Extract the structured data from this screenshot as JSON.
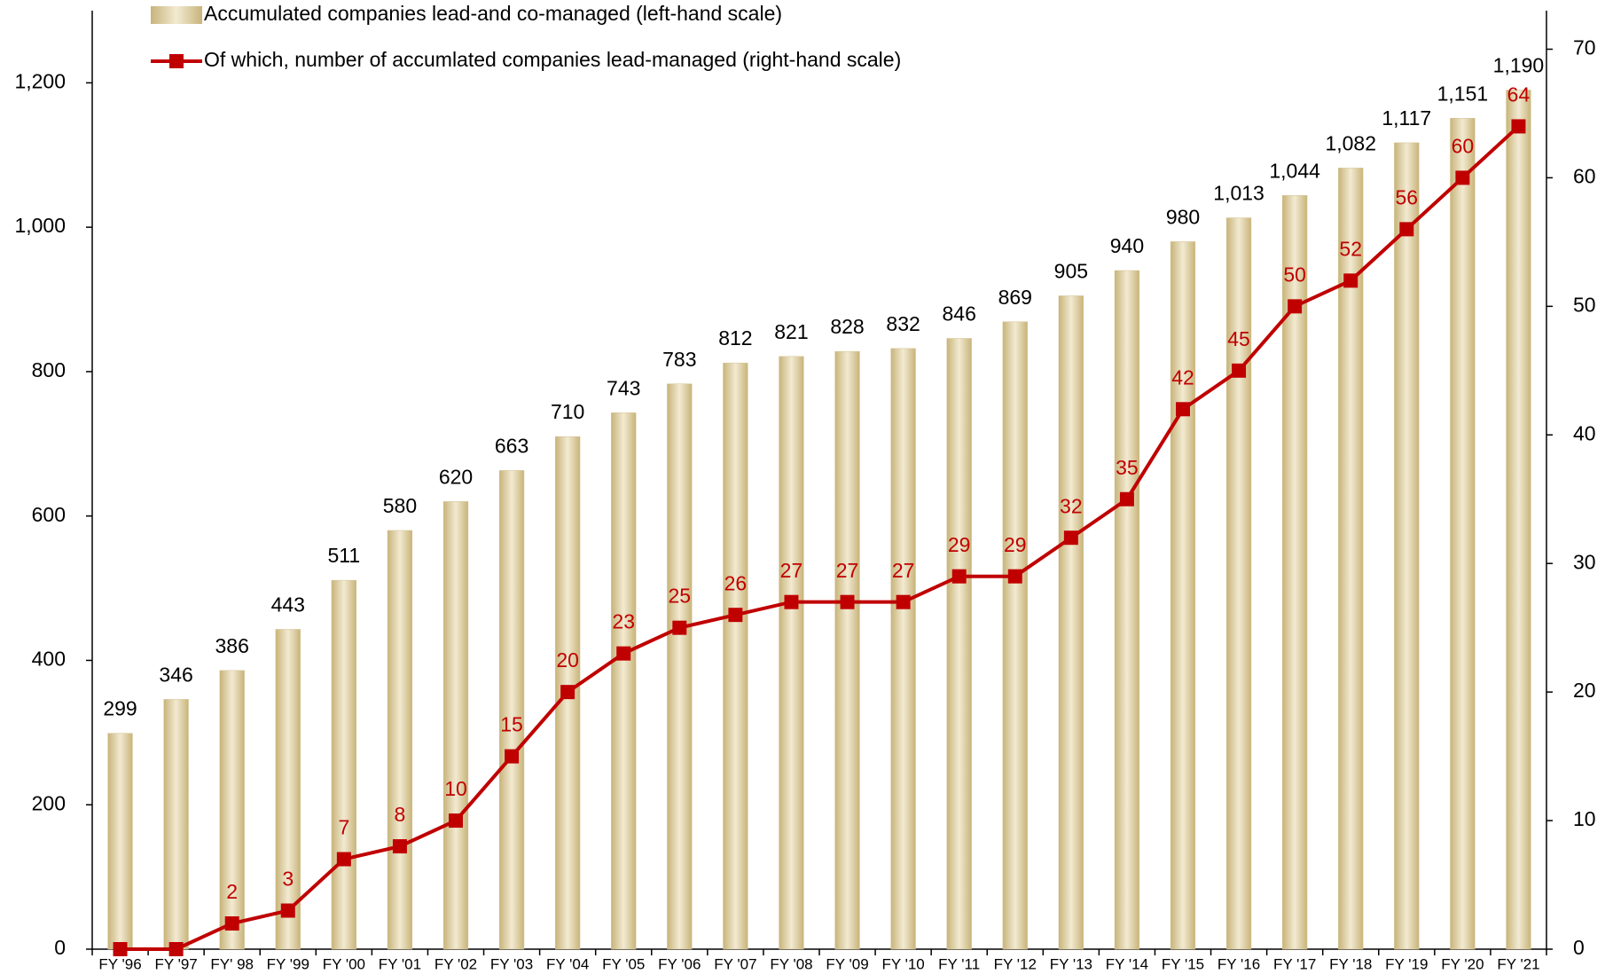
{
  "chart_data": {
    "type": "bar-line",
    "categories": [
      "FY '96",
      "FY '97",
      "FY' 98",
      "FY '99",
      "FY '00",
      "FY '01",
      "FY '02",
      "FY '03",
      "FY '04",
      "FY '05",
      "FY '06",
      "FY '07",
      "FY '08",
      "FY '09",
      "FY '10",
      "FY '11",
      "FY '12",
      "FY '13",
      "FY '14",
      "FY '15",
      "FY '16",
      "FY '17",
      "FY '18",
      "FY '19",
      "FY '20",
      "FY '21"
    ],
    "series": [
      {
        "name": "Accumulated companies lead-and co-managed (left-hand scale)",
        "type": "bar",
        "color": "#d2c18f",
        "values": [
          299,
          346,
          386,
          443,
          511,
          580,
          620,
          663,
          710,
          743,
          783,
          812,
          821,
          828,
          832,
          846,
          869,
          905,
          940,
          980,
          1013,
          1044,
          1082,
          1117,
          1151,
          1190
        ],
        "value_labels": [
          "299",
          "346",
          "386",
          "443",
          "511",
          "580",
          "620",
          "663",
          "710",
          "743",
          "783",
          "812",
          "821",
          "828",
          "832",
          "846",
          "869",
          "905",
          "940",
          "980",
          "1,013",
          "1,044",
          "1,082",
          "1,117",
          "1,151",
          "1,190"
        ]
      },
      {
        "name": "Of which, number of accumlated companies lead-managed (right-hand scale)",
        "type": "line",
        "axis": "y2",
        "color": "#c00000",
        "values": [
          0,
          0,
          2,
          3,
          7,
          8,
          10,
          15,
          20,
          23,
          25,
          26,
          27,
          27,
          27,
          29,
          29,
          32,
          35,
          42,
          45,
          50,
          52,
          56,
          60,
          64
        ],
        "value_labels": [
          null,
          null,
          "2",
          "3",
          "7",
          "8",
          "10",
          "15",
          "20",
          "23",
          "25",
          "26",
          "27",
          "27",
          "27",
          "29",
          "29",
          "32",
          "35",
          "42",
          "45",
          "50",
          "52",
          "56",
          "60",
          "64"
        ]
      }
    ],
    "ylim": [
      0,
      1300
    ],
    "yticks": [
      0,
      200,
      400,
      600,
      800,
      {
        "value": 1000,
        "label": "1,000"
      },
      {
        "value": 1200,
        "label": "1,200"
      }
    ],
    "y2lim": [
      0,
      73
    ],
    "y2ticks": [
      0,
      10,
      20,
      30,
      40,
      50,
      60,
      70
    ]
  }
}
